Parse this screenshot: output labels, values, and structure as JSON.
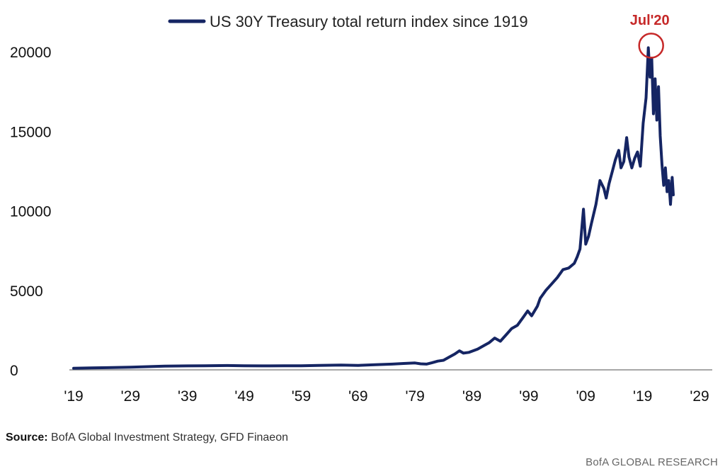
{
  "chart_data": {
    "type": "line",
    "legend": {
      "label": "US 30Y Treasury total return index since 1919",
      "placement": "top-center"
    },
    "line_color": "#152563",
    "annotation": {
      "label": "Jul'20",
      "x": 2020.5,
      "y": 20250,
      "color": "#c62828"
    },
    "xlim": [
      1919,
      2029
    ],
    "ylim": [
      0,
      20000
    ],
    "x_ticks": [
      {
        "value": 1919,
        "label": "'19"
      },
      {
        "value": 1929,
        "label": "'29"
      },
      {
        "value": 1939,
        "label": "'39"
      },
      {
        "value": 1949,
        "label": "'49"
      },
      {
        "value": 1959,
        "label": "'59"
      },
      {
        "value": 1969,
        "label": "'69"
      },
      {
        "value": 1979,
        "label": "'79"
      },
      {
        "value": 1989,
        "label": "'89"
      },
      {
        "value": 1999,
        "label": "'99"
      },
      {
        "value": 2009,
        "label": "'09"
      },
      {
        "value": 2019,
        "label": "'19"
      },
      {
        "value": 2029,
        "label": "'29"
      }
    ],
    "y_ticks": [
      {
        "value": 0,
        "label": "0"
      },
      {
        "value": 5000,
        "label": "5000"
      },
      {
        "value": 10000,
        "label": "10000"
      },
      {
        "value": 15000,
        "label": "15000"
      },
      {
        "value": 20000,
        "label": "20000"
      }
    ],
    "series": [
      {
        "name": "US 30Y Treasury total return index since 1919",
        "x": [
          1919,
          1922,
          1925,
          1929,
          1932,
          1935,
          1939,
          1942,
          1946,
          1949,
          1952,
          1956,
          1959,
          1962,
          1966,
          1969,
          1972,
          1975,
          1977,
          1979,
          1980,
          1981,
          1982,
          1983,
          1984,
          1985,
          1986,
          1986.8,
          1987.5,
          1988.5,
          1990,
          1991,
          1992,
          1993,
          1994,
          1995,
          1996,
          1997,
          1998,
          1998.8,
          1999.5,
          2000.5,
          2001,
          2002,
          2003,
          2004,
          2005,
          2006,
          2007,
          2007.5,
          2008.0,
          2008.6,
          2009.0,
          2009.5,
          2010,
          2010.8,
          2011.5,
          2012.2,
          2012.6,
          2013.1,
          2013.7,
          2014.2,
          2014.8,
          2015.2,
          2015.7,
          2016.2,
          2016.6,
          2017.1,
          2017.6,
          2018.1,
          2018.6,
          2019.1,
          2019.6,
          2020.0,
          2020.3,
          2020.6,
          2020.9,
          2021.2,
          2021.5,
          2021.8,
          2022.1,
          2022.4,
          2022.7,
          2023.0,
          2023.3,
          2023.6,
          2023.9,
          2024.2,
          2024.4
        ],
        "values": [
          100,
          120,
          140,
          170,
          200,
          230,
          250,
          260,
          270,
          260,
          250,
          260,
          260,
          280,
          300,
          280,
          320,
          360,
          400,
          430,
          380,
          360,
          450,
          550,
          600,
          800,
          1000,
          1200,
          1050,
          1100,
          1300,
          1500,
          1700,
          2000,
          1800,
          2200,
          2600,
          2800,
          3300,
          3700,
          3400,
          4000,
          4500,
          5000,
          5400,
          5800,
          6300,
          6400,
          6700,
          7100,
          7600,
          10100,
          7900,
          8400,
          9200,
          10400,
          11900,
          11400,
          10800,
          11700,
          12500,
          13200,
          13800,
          12700,
          13100,
          14600,
          13400,
          12700,
          13300,
          13700,
          12800,
          15500,
          17100,
          20250,
          18400,
          19600,
          16100,
          18300,
          15700,
          17800,
          14700,
          12900,
          11600,
          12700,
          11200,
          11900,
          10400,
          12100,
          11000
        ]
      }
    ]
  },
  "footer": {
    "source_label": "Source:",
    "source_text": " BofA Global Investment Strategy, GFD Finaeon",
    "brand": "BofA GLOBAL RESEARCH"
  }
}
